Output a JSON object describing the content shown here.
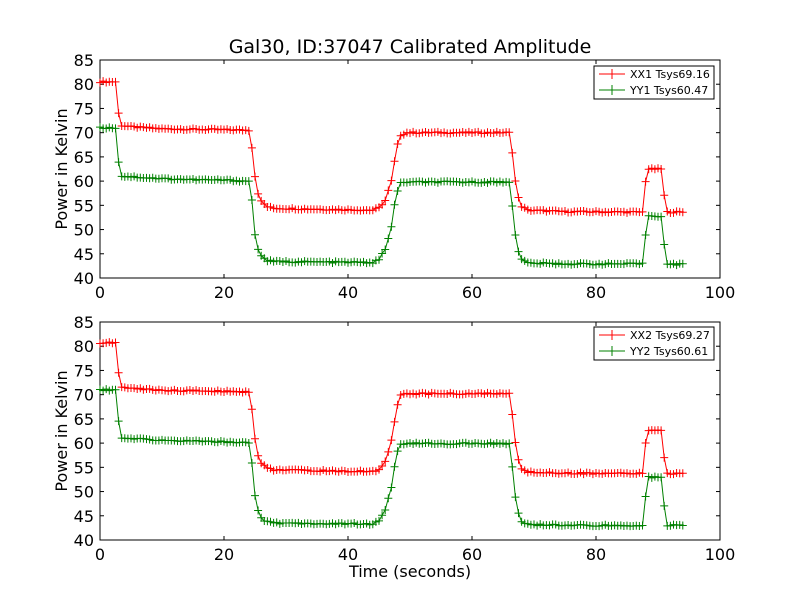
{
  "chart_data": [
    {
      "type": "line",
      "title": "Gal30, ID:37047 Calibrated Amplitude",
      "xlabel": "",
      "ylabel": "Power in Kelvin",
      "xlim": [
        0,
        100
      ],
      "ylim": [
        40,
        85
      ],
      "xticks": [
        0,
        20,
        40,
        60,
        80,
        100
      ],
      "yticks": [
        40,
        45,
        50,
        55,
        60,
        65,
        70,
        75,
        80,
        85
      ],
      "legend_position": "top-right",
      "marker": "plus",
      "series": [
        {
          "name": "XX1 Tsys69.16",
          "color": "#ff0000",
          "profile": [
            [
              0,
              80.5
            ],
            [
              2.5,
              80.5
            ],
            [
              3.0,
              74.0
            ],
            [
              3.5,
              71.5
            ],
            [
              5,
              71.2
            ],
            [
              10,
              70.8
            ],
            [
              15,
              70.7
            ],
            [
              20,
              70.6
            ],
            [
              24,
              70.5
            ],
            [
              24.5,
              67.0
            ],
            [
              25.0,
              61.0
            ],
            [
              25.5,
              57.5
            ],
            [
              26.0,
              55.8
            ],
            [
              27.0,
              54.7
            ],
            [
              28.0,
              54.4
            ],
            [
              35,
              54.2
            ],
            [
              44,
              54.0
            ],
            [
              45.0,
              54.5
            ],
            [
              46.0,
              56.0
            ],
            [
              47.0,
              60.0
            ],
            [
              47.5,
              64.0
            ],
            [
              48.0,
              67.5
            ],
            [
              48.5,
              69.5
            ],
            [
              49.5,
              70.0
            ],
            [
              66,
              70.0
            ],
            [
              66.5,
              66.0
            ],
            [
              67.0,
              60.0
            ],
            [
              67.5,
              56.5
            ],
            [
              68.0,
              54.8
            ],
            [
              69.0,
              54.0
            ],
            [
              75,
              53.7
            ],
            [
              87.5,
              53.6
            ],
            [
              88.0,
              60.0
            ],
            [
              88.5,
              62.5
            ],
            [
              90.5,
              62.5
            ],
            [
              91.0,
              57.0
            ],
            [
              91.5,
              53.6
            ],
            [
              94,
              53.6
            ]
          ]
        },
        {
          "name": "YY1 Tsys60.47",
          "color": "#008000",
          "profile": [
            [
              0,
              71.0
            ],
            [
              2.5,
              71.0
            ],
            [
              3.0,
              64.0
            ],
            [
              3.5,
              61.0
            ],
            [
              5,
              60.9
            ],
            [
              10,
              60.5
            ],
            [
              15,
              60.3
            ],
            [
              20,
              60.2
            ],
            [
              24,
              60.0
            ],
            [
              24.5,
              56.0
            ],
            [
              25.0,
              49.0
            ],
            [
              25.5,
              46.0
            ],
            [
              26.0,
              44.5
            ],
            [
              27.0,
              43.6
            ],
            [
              28.0,
              43.4
            ],
            [
              35,
              43.3
            ],
            [
              44,
              43.2
            ],
            [
              45.0,
              43.8
            ],
            [
              46.0,
              46.0
            ],
            [
              47.0,
              50.5
            ],
            [
              47.5,
              55.0
            ],
            [
              48.0,
              58.0
            ],
            [
              48.5,
              59.6
            ],
            [
              49.5,
              59.8
            ],
            [
              66,
              59.8
            ],
            [
              66.5,
              55.0
            ],
            [
              67.0,
              49.0
            ],
            [
              67.5,
              45.5
            ],
            [
              68.0,
              43.8
            ],
            [
              69.0,
              43.1
            ],
            [
              75,
              42.9
            ],
            [
              87.5,
              42.9
            ],
            [
              88.0,
              49.0
            ],
            [
              88.5,
              52.8
            ],
            [
              90.5,
              52.8
            ],
            [
              91.0,
              47.0
            ],
            [
              91.5,
              42.8
            ],
            [
              94,
              42.8
            ]
          ]
        }
      ]
    },
    {
      "type": "line",
      "title": "",
      "xlabel": "Time (seconds)",
      "ylabel": "Power in Kelvin",
      "xlim": [
        0,
        100
      ],
      "ylim": [
        40,
        85
      ],
      "xticks": [
        0,
        20,
        40,
        60,
        80,
        100
      ],
      "yticks": [
        40,
        45,
        50,
        55,
        60,
        65,
        70,
        75,
        80,
        85
      ],
      "legend_position": "top-right",
      "marker": "plus",
      "series": [
        {
          "name": "XX2 Tsys69.27",
          "color": "#ff0000",
          "profile": [
            [
              0,
              80.7
            ],
            [
              2.5,
              80.7
            ],
            [
              3.0,
              74.5
            ],
            [
              3.5,
              71.6
            ],
            [
              5,
              71.3
            ],
            [
              10,
              70.9
            ],
            [
              15,
              70.8
            ],
            [
              20,
              70.7
            ],
            [
              24,
              70.6
            ],
            [
              24.5,
              67.0
            ],
            [
              25.0,
              61.0
            ],
            [
              25.5,
              57.5
            ],
            [
              26.0,
              55.8
            ],
            [
              27.0,
              54.8
            ],
            [
              28.0,
              54.5
            ],
            [
              35,
              54.3
            ],
            [
              44,
              54.1
            ],
            [
              45.0,
              54.6
            ],
            [
              46.0,
              56.2
            ],
            [
              47.0,
              60.5
            ],
            [
              47.5,
              64.5
            ],
            [
              48.0,
              68.0
            ],
            [
              48.5,
              69.8
            ],
            [
              49.5,
              70.2
            ],
            [
              66,
              70.2
            ],
            [
              66.5,
              66.0
            ],
            [
              67.0,
              60.0
            ],
            [
              67.5,
              56.5
            ],
            [
              68.0,
              54.8
            ],
            [
              69.0,
              54.0
            ],
            [
              75,
              53.8
            ],
            [
              87.5,
              53.7
            ],
            [
              88.0,
              60.0
            ],
            [
              88.5,
              62.7
            ],
            [
              90.5,
              62.7
            ],
            [
              91.0,
              57.0
            ],
            [
              91.5,
              53.7
            ],
            [
              94,
              53.7
            ]
          ]
        },
        {
          "name": "YY2 Tsys60.61",
          "color": "#008000",
          "profile": [
            [
              0,
              71.0
            ],
            [
              2.5,
              71.0
            ],
            [
              3.0,
              64.5
            ],
            [
              3.5,
              61.0
            ],
            [
              5,
              60.9
            ],
            [
              10,
              60.6
            ],
            [
              15,
              60.4
            ],
            [
              20,
              60.3
            ],
            [
              24,
              60.1
            ],
            [
              24.5,
              56.0
            ],
            [
              25.0,
              49.0
            ],
            [
              25.5,
              46.0
            ],
            [
              26.0,
              44.5
            ],
            [
              27.0,
              43.7
            ],
            [
              28.0,
              43.5
            ],
            [
              35,
              43.4
            ],
            [
              44,
              43.3
            ],
            [
              45.0,
              43.9
            ],
            [
              46.0,
              46.2
            ],
            [
              47.0,
              50.8
            ],
            [
              47.5,
              55.2
            ],
            [
              48.0,
              58.2
            ],
            [
              48.5,
              59.7
            ],
            [
              49.5,
              59.9
            ],
            [
              66,
              59.9
            ],
            [
              66.5,
              55.0
            ],
            [
              67.0,
              49.0
            ],
            [
              67.5,
              45.5
            ],
            [
              68.0,
              43.9
            ],
            [
              69.0,
              43.2
            ],
            [
              75,
              43.0
            ],
            [
              87.5,
              43.0
            ],
            [
              88.0,
              49.0
            ],
            [
              88.5,
              53.0
            ],
            [
              90.5,
              53.0
            ],
            [
              91.0,
              47.0
            ],
            [
              91.5,
              43.0
            ],
            [
              94,
              43.0
            ]
          ]
        }
      ]
    }
  ]
}
